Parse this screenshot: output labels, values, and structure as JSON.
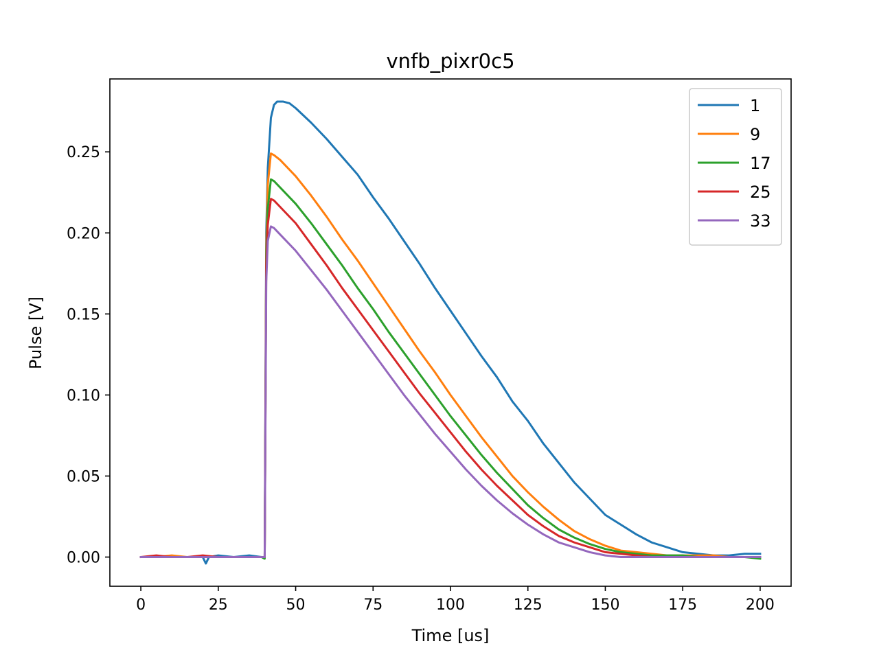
{
  "chart_data": {
    "type": "line",
    "title": "vnfb_pixr0c5",
    "xlabel": "Time [us]",
    "ylabel": "Pulse [V]",
    "xlim": [
      -10,
      210
    ],
    "ylim": [
      -0.018,
      0.295
    ],
    "xticks": [
      0,
      25,
      50,
      75,
      100,
      125,
      150,
      175,
      200
    ],
    "xtick_labels": [
      "0",
      "25",
      "50",
      "75",
      "100",
      "125",
      "150",
      "175",
      "200"
    ],
    "yticks": [
      0.0,
      0.05,
      0.1,
      0.15,
      0.2,
      0.25
    ],
    "ytick_labels": [
      "0.00",
      "0.05",
      "0.10",
      "0.15",
      "0.20",
      "0.25"
    ],
    "grid": false,
    "legend_position": "top-right",
    "series": [
      {
        "name": "1",
        "color": "#1f77b4",
        "x": [
          0,
          5,
          10,
          15,
          18,
          20,
          21,
          22,
          25,
          30,
          35,
          39,
          40,
          40.5,
          41,
          42,
          43,
          44,
          45,
          46,
          48,
          50,
          55,
          60,
          65,
          70,
          75,
          80,
          85,
          90,
          95,
          100,
          105,
          110,
          115,
          120,
          125,
          130,
          135,
          140,
          145,
          150,
          155,
          160,
          165,
          170,
          175,
          180,
          185,
          190,
          195,
          200
        ],
        "y": [
          0.0,
          0.0,
          0.0,
          0.0,
          0.0,
          0.0,
          -0.004,
          0.0,
          0.001,
          0.0,
          0.001,
          0.0,
          0.0,
          0.2,
          0.24,
          0.271,
          0.279,
          0.281,
          0.281,
          0.281,
          0.28,
          0.277,
          0.268,
          0.258,
          0.247,
          0.236,
          0.222,
          0.209,
          0.195,
          0.181,
          0.166,
          0.152,
          0.138,
          0.124,
          0.111,
          0.096,
          0.084,
          0.07,
          0.058,
          0.046,
          0.036,
          0.026,
          0.02,
          0.014,
          0.009,
          0.006,
          0.003,
          0.002,
          0.001,
          0.001,
          0.002,
          0.002
        ]
      },
      {
        "name": "9",
        "color": "#ff7f0e",
        "x": [
          0,
          5,
          10,
          15,
          20,
          25,
          30,
          35,
          39,
          40,
          40.5,
          41,
          42,
          43,
          45,
          50,
          55,
          60,
          65,
          70,
          75,
          80,
          85,
          90,
          95,
          100,
          105,
          110,
          115,
          120,
          125,
          130,
          135,
          140,
          145,
          150,
          155,
          160,
          165,
          170,
          175,
          180,
          185,
          190,
          195,
          200
        ],
        "y": [
          0.0,
          0.0,
          0.001,
          0.0,
          0.0,
          0.0,
          0.0,
          0.0,
          0.0,
          0.0,
          0.19,
          0.23,
          0.249,
          0.248,
          0.245,
          0.235,
          0.223,
          0.21,
          0.196,
          0.183,
          0.169,
          0.155,
          0.141,
          0.127,
          0.114,
          0.1,
          0.087,
          0.074,
          0.062,
          0.05,
          0.04,
          0.031,
          0.023,
          0.016,
          0.011,
          0.007,
          0.004,
          0.003,
          0.002,
          0.001,
          0.001,
          0.001,
          0.001,
          0.0,
          0.0,
          0.0
        ]
      },
      {
        "name": "17",
        "color": "#2ca02c",
        "x": [
          0,
          5,
          10,
          15,
          20,
          25,
          30,
          35,
          39,
          40,
          40.5,
          41,
          42,
          43,
          45,
          50,
          55,
          60,
          65,
          70,
          75,
          80,
          85,
          90,
          95,
          100,
          105,
          110,
          115,
          120,
          125,
          130,
          135,
          140,
          145,
          150,
          155,
          160,
          165,
          170,
          175,
          180,
          185,
          190,
          195,
          200
        ],
        "y": [
          0.0,
          0.0,
          0.0,
          0.0,
          0.0,
          0.0,
          0.0,
          0.0,
          0.0,
          -0.001,
          0.185,
          0.215,
          0.233,
          0.232,
          0.228,
          0.218,
          0.206,
          0.193,
          0.18,
          0.166,
          0.153,
          0.139,
          0.126,
          0.113,
          0.1,
          0.087,
          0.075,
          0.063,
          0.052,
          0.042,
          0.032,
          0.024,
          0.017,
          0.012,
          0.008,
          0.005,
          0.003,
          0.002,
          0.001,
          0.001,
          0.001,
          0.0,
          0.0,
          0.0,
          0.0,
          -0.001
        ]
      },
      {
        "name": "25",
        "color": "#d62728",
        "x": [
          0,
          5,
          10,
          15,
          20,
          25,
          30,
          35,
          39,
          40,
          40.5,
          41,
          42,
          43,
          45,
          50,
          55,
          60,
          65,
          70,
          75,
          80,
          85,
          90,
          95,
          100,
          105,
          110,
          115,
          120,
          125,
          130,
          135,
          140,
          145,
          150,
          155,
          160,
          165,
          170,
          175,
          180,
          185,
          190,
          195,
          200
        ],
        "y": [
          0.0,
          0.001,
          0.0,
          0.0,
          0.001,
          0.0,
          0.0,
          0.0,
          0.0,
          0.0,
          0.18,
          0.205,
          0.221,
          0.22,
          0.216,
          0.206,
          0.193,
          0.18,
          0.166,
          0.153,
          0.14,
          0.127,
          0.114,
          0.101,
          0.089,
          0.077,
          0.065,
          0.054,
          0.044,
          0.035,
          0.026,
          0.019,
          0.013,
          0.009,
          0.006,
          0.003,
          0.002,
          0.001,
          0.0,
          0.0,
          0.0,
          0.0,
          0.0,
          0.0,
          0.0,
          0.0
        ]
      },
      {
        "name": "33",
        "color": "#9467bd",
        "x": [
          0,
          5,
          10,
          15,
          20,
          25,
          30,
          35,
          39,
          40,
          40.5,
          41,
          42,
          43,
          45,
          50,
          55,
          60,
          65,
          70,
          75,
          80,
          85,
          90,
          95,
          100,
          105,
          110,
          115,
          120,
          125,
          130,
          135,
          140,
          145,
          150,
          155,
          160,
          165,
          170,
          175,
          180,
          185,
          190,
          195,
          200
        ],
        "y": [
          0.0,
          0.0,
          0.0,
          0.0,
          0.0,
          0.0,
          0.0,
          0.0,
          0.0,
          0.0,
          0.17,
          0.195,
          0.204,
          0.203,
          0.199,
          0.189,
          0.177,
          0.165,
          0.152,
          0.139,
          0.126,
          0.113,
          0.1,
          0.088,
          0.076,
          0.065,
          0.054,
          0.044,
          0.035,
          0.027,
          0.02,
          0.014,
          0.009,
          0.006,
          0.003,
          0.001,
          0.0,
          0.0,
          0.0,
          0.0,
          0.0,
          0.0,
          0.0,
          0.0,
          0.0,
          0.0
        ]
      }
    ]
  }
}
